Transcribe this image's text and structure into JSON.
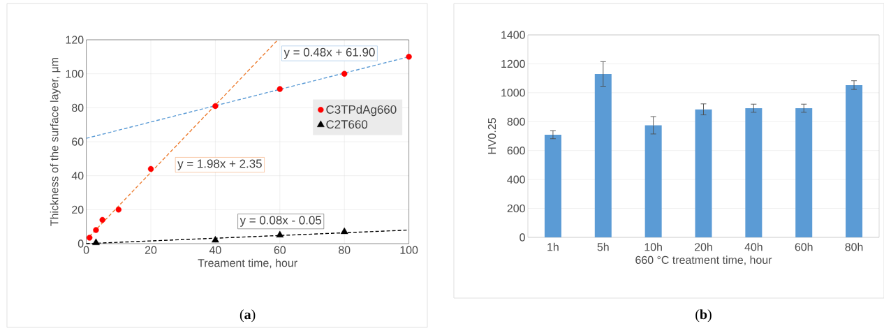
{
  "chart_data": [
    {
      "type": "scatter",
      "xlabel": "Treament time, hour",
      "ylabel": "Thickness of the surface layer, μm",
      "xlim": [
        0,
        100
      ],
      "ylim": [
        0,
        120
      ],
      "xticks": [
        0,
        20,
        40,
        60,
        80,
        100
      ],
      "yticks": [
        0,
        20,
        40,
        60,
        80,
        100,
        120
      ],
      "grid": true,
      "legend": "right",
      "series": [
        {
          "name": "C3TPdAg660",
          "color": "#ff0000",
          "marker": "circle",
          "x": [
            1,
            3,
            5,
            10,
            20,
            40,
            60,
            80,
            100
          ],
          "values": [
            3.5,
            8,
            14,
            20,
            44,
            81,
            91,
            100,
            110
          ]
        },
        {
          "name": "C2T660",
          "color": "#000000",
          "marker": "triangle",
          "x": [
            3,
            40,
            60,
            80
          ],
          "values": [
            0.5,
            2,
            5,
            7
          ]
        },
        {
          "type": "line",
          "color": "#5b9bd5",
          "line_style": "dashed",
          "x": [
            0,
            100
          ],
          "values": [
            62,
            110
          ]
        },
        {
          "type": "line",
          "color": "#ed7d31",
          "line_style": "dashed",
          "x": [
            1,
            59.4
          ],
          "values": [
            4.3,
            120
          ]
        },
        {
          "type": "line",
          "color": "#000000",
          "line_style": "dashed",
          "x": [
            0,
            100
          ],
          "values": [
            0,
            8
          ]
        }
      ],
      "annotations": [
        "y = 0.48x + 61.90",
        "y = 1.98x + 2.35",
        "y = 0.08x - 0.05",
        "(**a**)"
      ]
    },
    {
      "type": "bar",
      "xlabel": "660 °C treatment time, hour",
      "ylabel": "HV0.25",
      "categories": [
        "1h",
        "5h",
        "10h",
        "20h",
        "40h",
        "60h",
        "80h"
      ],
      "color": "#5b9bd5",
      "values": [
        710,
        1130,
        775,
        885,
        893,
        893,
        1053
      ],
      "errors": [
        28,
        85,
        60,
        38,
        28,
        28,
        30
      ],
      "ylim": [
        0,
        1400
      ],
      "yticks": [
        0,
        200,
        400,
        600,
        800,
        1000,
        1200,
        1400
      ],
      "grid": "y",
      "annotations": [
        "(**b**)"
      ]
    }
  ]
}
